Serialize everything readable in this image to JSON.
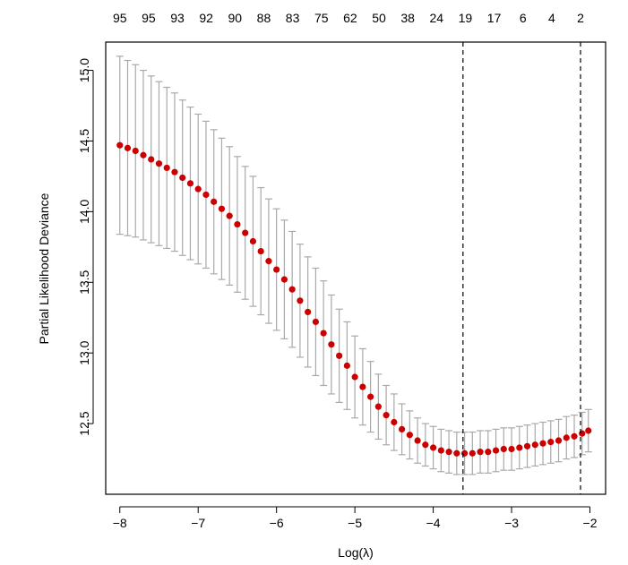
{
  "chart_data": {
    "type": "scatter",
    "title": "",
    "xlabel": "Log(λ)",
    "ylabel": "Partial Likelihood Deviance",
    "xlim": [
      -8.18,
      -1.8
    ],
    "ylim": [
      12.0,
      15.2
    ],
    "x_ticks": [
      "−8",
      "−7",
      "−6",
      "−5",
      "−4",
      "−3",
      "−2"
    ],
    "x_tick_values": [
      -8,
      -7,
      -6,
      -5,
      -4,
      -3,
      -2
    ],
    "y_ticks": [
      "12.5",
      "13.0",
      "13.5",
      "14.0",
      "14.5",
      "15.0"
    ],
    "y_tick_values": [
      12.5,
      13.0,
      13.5,
      14.0,
      14.5,
      15.0
    ],
    "top_axis_labels": [
      "95",
      "95",
      "93",
      "92",
      "90",
      "88",
      "83",
      "75",
      "62",
      "50",
      "38",
      "24",
      "19",
      "17",
      "6",
      "4",
      "2"
    ],
    "vlines": [
      -3.62,
      -2.12
    ],
    "x": [
      -8.0,
      -7.9,
      -7.8,
      -7.7,
      -7.6,
      -7.5,
      -7.4,
      -7.3,
      -7.2,
      -7.1,
      -7.0,
      -6.9,
      -6.8,
      -6.7,
      -6.6,
      -6.5,
      -6.4,
      -6.3,
      -6.2,
      -6.1,
      -6.0,
      -5.9,
      -5.8,
      -5.7,
      -5.6,
      -5.5,
      -5.4,
      -5.3,
      -5.2,
      -5.1,
      -5.0,
      -4.9,
      -4.8,
      -4.7,
      -4.6,
      -4.5,
      -4.4,
      -4.3,
      -4.2,
      -4.1,
      -4.0,
      -3.9,
      -3.8,
      -3.7,
      -3.6,
      -3.5,
      -3.4,
      -3.3,
      -3.2,
      -3.1,
      -3.0,
      -2.9,
      -2.8,
      -2.7,
      -2.6,
      -2.5,
      -2.4,
      -2.3,
      -2.2,
      -2.1,
      -2.02
    ],
    "y": [
      14.47,
      14.45,
      14.43,
      14.4,
      14.37,
      14.34,
      14.31,
      14.28,
      14.24,
      14.2,
      14.16,
      14.12,
      14.07,
      14.02,
      13.97,
      13.91,
      13.85,
      13.79,
      13.72,
      13.65,
      13.59,
      13.52,
      13.45,
      13.37,
      13.29,
      13.22,
      13.14,
      13.06,
      12.98,
      12.91,
      12.83,
      12.76,
      12.69,
      12.62,
      12.56,
      12.51,
      12.46,
      12.42,
      12.38,
      12.35,
      12.33,
      12.31,
      12.3,
      12.29,
      12.29,
      12.29,
      12.3,
      12.3,
      12.31,
      12.32,
      12.32,
      12.33,
      12.34,
      12.35,
      12.36,
      12.37,
      12.38,
      12.4,
      12.41,
      12.43,
      12.45
    ],
    "se": [
      0.63,
      0.62,
      0.61,
      0.6,
      0.59,
      0.58,
      0.57,
      0.56,
      0.55,
      0.54,
      0.53,
      0.52,
      0.51,
      0.5,
      0.49,
      0.48,
      0.47,
      0.46,
      0.45,
      0.44,
      0.43,
      0.42,
      0.41,
      0.4,
      0.39,
      0.38,
      0.37,
      0.35,
      0.33,
      0.31,
      0.29,
      0.27,
      0.25,
      0.23,
      0.21,
      0.2,
      0.18,
      0.17,
      0.16,
      0.15,
      0.15,
      0.15,
      0.15,
      0.15,
      0.15,
      0.15,
      0.15,
      0.15,
      0.15,
      0.15,
      0.15,
      0.15,
      0.15,
      0.15,
      0.15,
      0.15,
      0.15,
      0.15,
      0.15,
      0.15,
      0.15
    ],
    "point_color": "#cc0000",
    "errorbar_color": "#a9a9a9",
    "grid": false
  }
}
